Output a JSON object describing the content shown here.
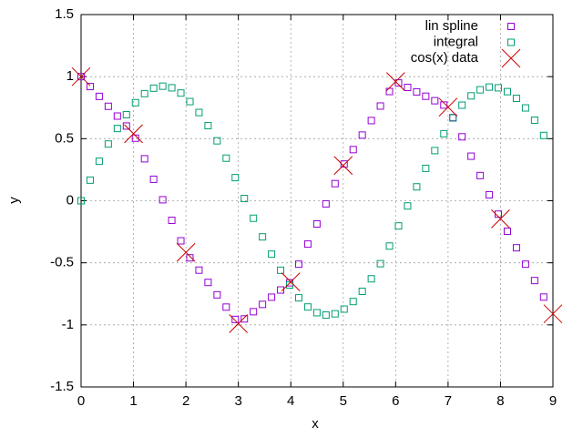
{
  "chart_data": {
    "type": "scatter",
    "xlabel": "x",
    "ylabel": "y",
    "xlim": [
      0,
      9
    ],
    "ylim": [
      -1.5,
      1.5
    ],
    "xticks": [
      0,
      1,
      2,
      3,
      4,
      5,
      6,
      7,
      8,
      9
    ],
    "yticks": [
      -1.5,
      -1,
      -0.5,
      0,
      0.5,
      1,
      1.5
    ],
    "grid": true,
    "legend": "top-right",
    "series": [
      {
        "name": "lin spline",
        "color": "#9400d3",
        "marker": "square",
        "x": [
          0,
          0.173,
          0.346,
          0.519,
          0.692,
          0.865,
          1.038,
          1.211,
          1.384,
          1.557,
          1.73,
          1.903,
          2.076,
          2.249,
          2.422,
          2.595,
          2.768,
          2.941,
          3.114,
          3.287,
          3.46,
          3.633,
          3.806,
          3.979,
          4.152,
          4.325,
          4.498,
          4.671,
          4.844,
          5.017,
          5.19,
          5.363,
          5.536,
          5.709,
          5.882,
          6.055,
          6.228,
          6.401,
          6.574,
          6.747,
          6.92,
          7.093,
          7.266,
          7.439,
          7.612,
          7.785,
          7.958,
          8.131,
          8.304,
          8.477,
          8.65,
          8.823
        ],
        "values": [
          1,
          0.92,
          0.841,
          0.761,
          0.682,
          0.602,
          0.504,
          0.338,
          0.173,
          0.008,
          -0.158,
          -0.323,
          -0.46,
          -0.559,
          -0.658,
          -0.758,
          -0.857,
          -0.956,
          -0.952,
          -0.894,
          -0.835,
          -0.777,
          -0.719,
          -0.661,
          -0.511,
          -0.349,
          -0.187,
          -0.025,
          0.138,
          0.296,
          0.412,
          0.529,
          0.646,
          0.763,
          0.88,
          0.949,
          0.913,
          0.877,
          0.842,
          0.806,
          0.771,
          0.67,
          0.515,
          0.359,
          0.203,
          0.048,
          -0.108,
          -0.246,
          -0.379,
          -0.511,
          -0.643,
          -0.776
        ]
      },
      {
        "name": "integral",
        "color": "#009e73",
        "marker": "square",
        "x": [
          0,
          0.173,
          0.346,
          0.519,
          0.692,
          0.865,
          1.038,
          1.211,
          1.384,
          1.557,
          1.73,
          1.903,
          2.076,
          2.249,
          2.422,
          2.595,
          2.768,
          2.941,
          3.114,
          3.287,
          3.46,
          3.633,
          3.806,
          3.979,
          4.152,
          4.325,
          4.498,
          4.671,
          4.844,
          5.017,
          5.19,
          5.363,
          5.536,
          5.709,
          5.882,
          6.055,
          6.228,
          6.401,
          6.574,
          6.747,
          6.92,
          7.093,
          7.266,
          7.439,
          7.612,
          7.785,
          7.958,
          8.131,
          8.304,
          8.477,
          8.65,
          8.823
        ],
        "values": [
          0,
          0.166,
          0.318,
          0.457,
          0.582,
          0.693,
          0.79,
          0.863,
          0.907,
          0.923,
          0.91,
          0.868,
          0.799,
          0.711,
          0.605,
          0.483,
          0.343,
          0.186,
          0.018,
          -0.141,
          -0.291,
          -0.43,
          -0.56,
          -0.679,
          -0.782,
          -0.856,
          -0.902,
          -0.921,
          -0.911,
          -0.873,
          -0.812,
          -0.73,
          -0.629,
          -0.507,
          -0.365,
          -0.203,
          -0.042,
          0.112,
          0.261,
          0.404,
          0.54,
          0.667,
          0.77,
          0.845,
          0.894,
          0.916,
          0.91,
          0.879,
          0.825,
          0.748,
          0.649,
          0.526
        ]
      },
      {
        "name": "cos(x) data",
        "color": "#cc0000",
        "marker": "cross",
        "x": [
          0,
          1,
          2,
          3,
          4,
          5,
          6,
          7,
          8,
          9
        ],
        "values": [
          1,
          0.54,
          -0.416,
          -0.99,
          -0.654,
          0.284,
          0.96,
          0.754,
          -0.146,
          -0.911
        ]
      }
    ]
  }
}
